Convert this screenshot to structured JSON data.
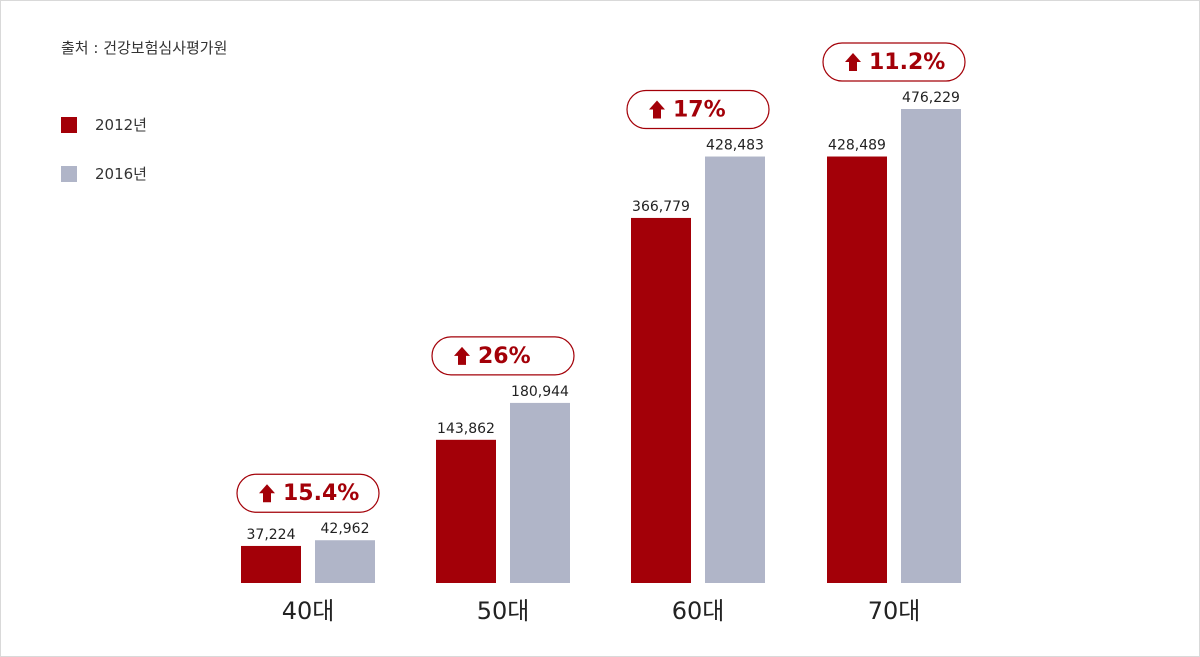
{
  "source": "출처 : 건강보험심사평가원",
  "legend": [
    {
      "label": "2012년",
      "color": "#a30008"
    },
    {
      "label": "2016년",
      "color": "#b0b5c8"
    }
  ],
  "chart_data": {
    "type": "bar",
    "categories": [
      "40대",
      "50대",
      "60대",
      "70대"
    ],
    "series": [
      {
        "name": "2012년",
        "color": "#a30008",
        "values": [
          37224,
          143862,
          366779,
          428489
        ],
        "labels": [
          "37,224",
          "143,862",
          "366,779",
          "428,489"
        ]
      },
      {
        "name": "2016년",
        "color": "#b0b5c8",
        "values": [
          42962,
          180944,
          428483,
          476229
        ],
        "labels": [
          "42,962",
          "180,944",
          "428,483",
          "476,229"
        ]
      }
    ],
    "growth_badges": [
      "15.4%",
      "26%",
      "17%",
      "11.2%"
    ],
    "badge_color": "#a30008",
    "ylim": [
      0,
      476229
    ],
    "grid": false,
    "legend_position": "top-left"
  }
}
